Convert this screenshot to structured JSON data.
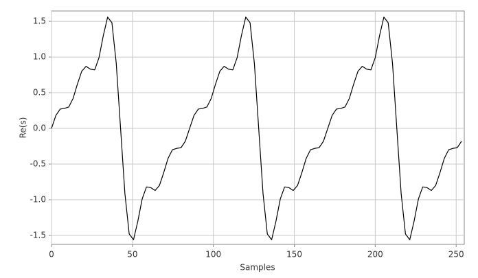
{
  "chart_data": {
    "type": "line",
    "xlabel": "Samples",
    "ylabel": "Re(s)",
    "xlim": [
      0,
      255
    ],
    "ylim": [
      -1.625,
      1.645
    ],
    "xticks": [
      0,
      50,
      100,
      150,
      200,
      250
    ],
    "yticks": [
      -1.5,
      {
        "value": -1.0,
        "label": "-1.0"
      },
      -0.5,
      {
        "value": 0,
        "label": "0.0"
      },
      0.5,
      {
        "value": 1.0,
        "label": "1.0"
      },
      1.5
    ],
    "grid": true,
    "x": [
      0,
      2.67,
      5.33,
      8,
      10.67,
      13.33,
      16,
      18.67,
      21.33,
      24,
      26.67,
      29.33,
      32,
      34.67,
      37.33,
      40,
      42.67,
      45.33,
      48,
      50.67,
      53.33,
      56,
      58.67,
      61.33,
      64,
      66.67,
      69.33,
      72,
      74.67,
      77.33,
      80,
      82.67,
      85.33,
      88,
      90.67,
      93.33,
      96,
      98.67,
      101.33,
      104,
      106.67,
      109.33,
      112,
      114.67,
      117.33,
      120,
      122.67,
      125.33,
      128,
      130.67,
      133.33,
      136,
      138.67,
      141.33,
      144,
      146.67,
      149.33,
      152,
      154.67,
      157.33,
      160,
      162.67,
      165.33,
      168,
      170.67,
      173.33,
      176,
      178.67,
      181.33,
      184,
      186.67,
      189.33,
      192,
      194.67,
      197.33,
      200,
      202.67,
      205.33,
      208,
      210.67,
      213.33,
      216,
      218.67,
      221.33,
      224,
      226.67,
      229.33,
      232,
      234.67,
      237.33,
      240,
      242.67,
      245.33,
      248,
      250.67,
      253.33
    ],
    "series": [
      {
        "color": "#000000",
        "values": [
          0,
          0.18,
          0.27,
          0.28,
          0.3,
          0.42,
          0.62,
          0.8,
          0.87,
          0.83,
          0.82,
          0.99,
          1.3,
          1.56,
          1.48,
          0.91,
          0,
          -0.91,
          -1.48,
          -1.56,
          -1.3,
          -0.99,
          -0.82,
          -0.83,
          -0.87,
          -0.8,
          -0.62,
          -0.42,
          -0.3,
          -0.28,
          -0.27,
          -0.18,
          0,
          0.18,
          0.27,
          0.28,
          0.3,
          0.42,
          0.62,
          0.8,
          0.87,
          0.83,
          0.82,
          0.99,
          1.3,
          1.56,
          1.48,
          0.91,
          0,
          -0.91,
          -1.48,
          -1.56,
          -1.3,
          -0.99,
          -0.82,
          -0.83,
          -0.87,
          -0.8,
          -0.62,
          -0.42,
          -0.3,
          -0.28,
          -0.27,
          -0.18,
          0,
          0.18,
          0.27,
          0.28,
          0.3,
          0.42,
          0.62,
          0.8,
          0.87,
          0.83,
          0.82,
          0.99,
          1.3,
          1.56,
          1.48,
          0.91,
          0,
          -0.91,
          -1.48,
          -1.56,
          -1.3,
          -0.99,
          -0.82,
          -0.83,
          -0.87,
          -0.8,
          -0.62,
          -0.42,
          -0.3,
          -0.28,
          -0.27,
          -0.18
        ]
      }
    ]
  }
}
